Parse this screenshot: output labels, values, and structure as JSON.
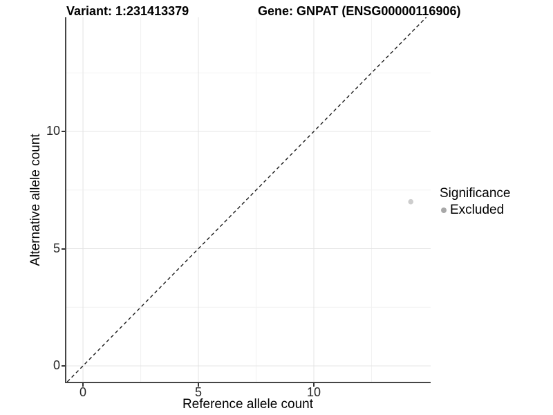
{
  "title": {
    "variant": "Variant: 1:231413379",
    "gene": "Gene: GNPAT (ENSG00000116906)"
  },
  "chart_data": {
    "type": "scatter",
    "xlabel": "Reference allele count",
    "ylabel": "Alternative allele count",
    "xlim": [
      -0.72,
      15.06
    ],
    "ylim": [
      -0.68,
      14.87
    ],
    "x_ticks": [
      0,
      5,
      10
    ],
    "y_ticks": [
      0,
      5,
      10
    ],
    "x_minor_ticks": [
      2.5,
      7.5,
      12.5
    ],
    "y_minor_ticks": [
      2.5,
      7.5,
      12.5
    ],
    "grid": true,
    "legend_position": "right",
    "identity_line": {
      "style": "dashed",
      "equation": "y = x"
    },
    "series": [
      {
        "name": "Excluded",
        "color": "#cdcdcd",
        "point_radius": 3.8,
        "points": [
          {
            "x": 14.2,
            "y": 7
          }
        ]
      }
    ]
  },
  "legend": {
    "title": "Significance",
    "items": [
      {
        "label": "Excluded",
        "color": "#a8a8a8"
      }
    ]
  },
  "colors": {
    "background": "#ffffff",
    "grid_major": "#e4e4e4",
    "grid_minor": "#f2f2f2",
    "axis_line": "#454545",
    "tick_mark": "#333333",
    "tick_label": "#262626",
    "dashed_line": "#1a1a1a",
    "text": "#000000"
  }
}
